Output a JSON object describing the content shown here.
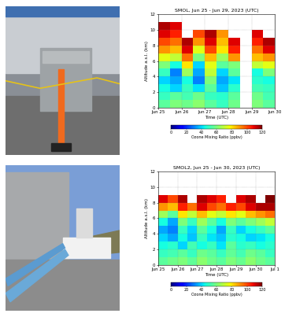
{
  "chart_data": [
    {
      "type": "heatmap",
      "title": "SMOL, Jun 25 - Jun 29, 2023 (UTC)",
      "x_label": "Time (UTC)",
      "y_label": "Altitude a.s.l. (km)",
      "grid": true,
      "xlim": [
        25,
        30
      ],
      "xticks": [
        {
          "value": 25,
          "label": "Jun 25"
        },
        {
          "value": 26,
          "label": "Jun 26"
        },
        {
          "value": 27,
          "label": "Jun 27"
        },
        {
          "value": 28,
          "label": "Jun 28"
        },
        {
          "value": 29,
          "label": "Jun 29"
        },
        {
          "value": 30,
          "label": "Jun 30"
        }
      ],
      "ylim": [
        0,
        12
      ],
      "yticks": [
        0,
        2,
        4,
        6,
        8,
        10,
        12
      ],
      "x_edges": [
        25,
        25.5,
        26,
        26.5,
        27,
        27.5,
        28,
        28.5,
        29,
        29.5,
        30
      ],
      "y_edges": [
        0,
        1,
        2,
        3,
        4,
        5,
        6,
        7,
        8,
        9,
        10,
        11,
        12
      ],
      "cells": [
        [
          55,
          60,
          58,
          62,
          55,
          50,
          58,
          null,
          60,
          55
        ],
        [
          50,
          55,
          52,
          58,
          50,
          48,
          55,
          null,
          58,
          52
        ],
        [
          45,
          40,
          50,
          42,
          55,
          38,
          48,
          null,
          52,
          50
        ],
        [
          40,
          35,
          45,
          30,
          60,
          35,
          42,
          null,
          48,
          45
        ],
        [
          50,
          30,
          65,
          35,
          70,
          40,
          55,
          null,
          45,
          60
        ],
        [
          60,
          45,
          80,
          40,
          75,
          55,
          60,
          null,
          70,
          75
        ],
        [
          75,
          70,
          95,
          60,
          85,
          65,
          90,
          null,
          85,
          90
        ],
        [
          90,
          85,
          110,
          75,
          100,
          80,
          105,
          null,
          95,
          110
        ],
        [
          100,
          95,
          115,
          90,
          110,
          85,
          110,
          null,
          105,
          115
        ],
        [
          110,
          105,
          null,
          100,
          115,
          90,
          null,
          null,
          110,
          null
        ],
        [
          115,
          110,
          null,
          null,
          null,
          null,
          null,
          null,
          null,
          null
        ],
        [
          null,
          null,
          null,
          null,
          null,
          null,
          null,
          null,
          null,
          null
        ]
      ],
      "colorbar": {
        "label": "Ozone Mixing Ratio (ppbv)",
        "range": [
          0,
          120
        ],
        "ticks": [
          0,
          20,
          40,
          60,
          80,
          100,
          120
        ]
      }
    },
    {
      "type": "heatmap",
      "title": "SMOL2, Jun 25 - Jun 30, 2023 (UTC)",
      "x_label": "Time (UTC)",
      "y_label": "Altitude a.s.l. (km)",
      "grid": true,
      "xlim": [
        25,
        31
      ],
      "xticks": [
        {
          "value": 25,
          "label": "Jun 25"
        },
        {
          "value": 26,
          "label": "Jun 26"
        },
        {
          "value": 27,
          "label": "Jun 27"
        },
        {
          "value": 28,
          "label": "Jun 28"
        },
        {
          "value": 29,
          "label": "Jun 29"
        },
        {
          "value": 30,
          "label": "Jun 30"
        },
        {
          "value": 31,
          "label": "Jul 1"
        }
      ],
      "ylim": [
        0,
        12
      ],
      "yticks": [
        0,
        2,
        4,
        6,
        8,
        10,
        12
      ],
      "x_edges": [
        25,
        25.5,
        26,
        26.5,
        27,
        27.5,
        28,
        28.5,
        29,
        29.5,
        30,
        30.5,
        31
      ],
      "y_edges": [
        0,
        1,
        2,
        3,
        4,
        5,
        6,
        7,
        8,
        9,
        10,
        11,
        12
      ],
      "cells": [
        [
          55,
          58,
          60,
          56,
          62,
          58,
          55,
          60,
          57,
          62,
          58,
          55
        ],
        [
          50,
          52,
          55,
          50,
          58,
          55,
          50,
          56,
          52,
          58,
          55,
          50
        ],
        [
          45,
          48,
          40,
          52,
          45,
          50,
          42,
          55,
          48,
          50,
          45,
          48
        ],
        [
          40,
          35,
          45,
          38,
          50,
          42,
          38,
          48,
          45,
          40,
          42,
          45
        ],
        [
          35,
          30,
          50,
          40,
          55,
          45,
          35,
          50,
          40,
          45,
          50,
          55
        ],
        [
          45,
          35,
          60,
          50,
          65,
          55,
          45,
          60,
          55,
          60,
          65,
          70
        ],
        [
          65,
          55,
          80,
          70,
          85,
          75,
          70,
          80,
          75,
          85,
          90,
          95
        ],
        [
          90,
          85,
          105,
          95,
          110,
          100,
          95,
          105,
          100,
          110,
          115,
          115
        ],
        [
          110,
          100,
          115,
          null,
          115,
          110,
          105,
          null,
          110,
          115,
          null,
          120
        ],
        [
          null,
          null,
          null,
          null,
          null,
          null,
          null,
          null,
          null,
          null,
          null,
          null
        ],
        [
          null,
          null,
          null,
          null,
          null,
          null,
          null,
          null,
          null,
          null,
          null,
          null
        ],
        [
          null,
          null,
          null,
          null,
          null,
          null,
          null,
          null,
          null,
          null,
          null,
          null
        ]
      ],
      "colorbar": {
        "label": "Ozone Mixing Ratio (ppbv)",
        "range": [
          0,
          120
        ],
        "ticks": [
          0,
          20,
          40,
          60,
          80,
          100,
          120
        ]
      }
    }
  ]
}
